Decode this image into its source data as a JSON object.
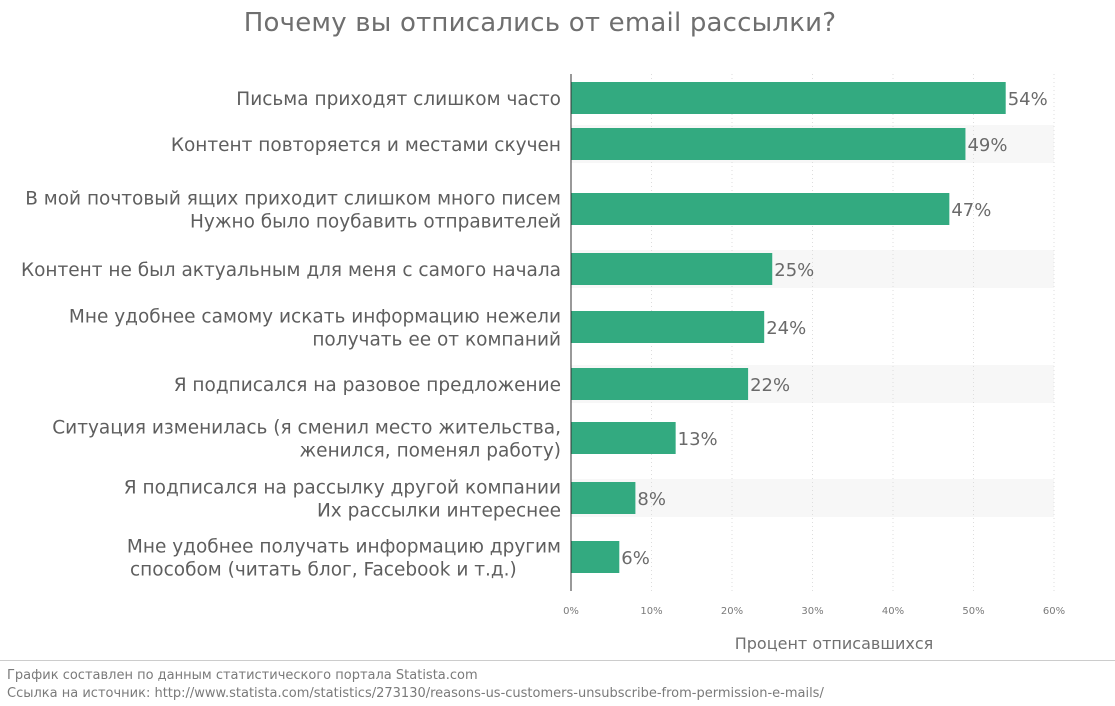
{
  "chart_data": {
    "type": "bar",
    "orientation": "horizontal",
    "title": "Почему вы отписались от email рассылки?",
    "xlabel": "Процент отписавшихся",
    "ylabel": "",
    "xlim": [
      0,
      60
    ],
    "xticks": [
      "0%",
      "10%",
      "20%",
      "30%",
      "40%",
      "50%",
      "60%"
    ],
    "grid": true,
    "categories": [
      [
        "Письма приходят слишком часто"
      ],
      [
        "Контент повторяется и местами скучен"
      ],
      [
        "В мой почтовый ящих приходит слишком много писем",
        "Нужно было  поубавить отправителей"
      ],
      [
        "Контент не был актуальным для меня с самого начала"
      ],
      [
        "Мне удобнее самому искать информацию нежели",
        "получать ее от компаний"
      ],
      [
        "Я подписался на разовое предложение"
      ],
      [
        "Ситуация изменилась (я сменил место жительства,",
        "женился, поменял работу)"
      ],
      [
        "Я подписался на рассылку другой компании",
        "Их рассылки интереснее"
      ],
      [
        "Мне удобнее получать информацию другим",
        "способом  (читать блог, Facebook и т.д.)"
      ]
    ],
    "values": [
      54,
      49,
      47,
      25,
      24,
      22,
      13,
      8,
      6
    ],
    "value_labels": [
      "54%",
      "49%",
      "47%",
      "25%",
      "24%",
      "22%",
      "13%",
      "8%",
      "6%"
    ],
    "bar_color": "#33aa80",
    "band_color": "#f7f7f7"
  },
  "footer": {
    "note": "График составлен по данным статистического портала Statista.com",
    "link": "Ссылка на источник: http://www.statista.com/statistics/273130/reasons-us-customers-unsubscribe-from-permission-e-mails/"
  }
}
